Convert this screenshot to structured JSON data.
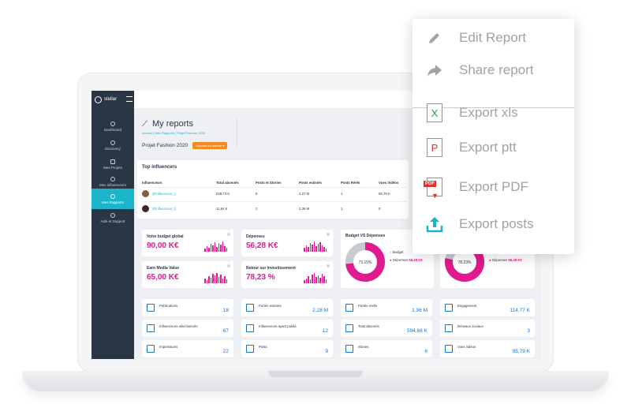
{
  "app": {
    "brand": "stellar"
  },
  "sidebar": {
    "items": [
      {
        "label": "Dashboard"
      },
      {
        "label": "Discovery"
      },
      {
        "label": "Mes Projets"
      },
      {
        "label": "Mes influenceurs"
      },
      {
        "label": "Mes Rapports"
      },
      {
        "label": "Aide et Support"
      }
    ]
  },
  "page": {
    "title": "My reports",
    "breadcrumb": "Accueil  |  Mes Rapports  |  Projet Fashion 2020",
    "project_name": "Projet Fashion 2020",
    "project_badge": "Rapport en attente"
  },
  "top_influencers": {
    "title": "Top influencers",
    "columns": [
      "Influenceurs",
      "Total abonnés",
      "Posts et Stories",
      "Posts estimés",
      "Posts Réels",
      "Vues Vidéos"
    ],
    "rows": [
      {
        "name": "@influenceur_1",
        "total": "528,73 K",
        "posts_stories": "8",
        "estimated": "2,27 M",
        "real": "1",
        "views": "95,79 K"
      },
      {
        "name": "@influenceur_2",
        "total": "11,94 K",
        "posts_stories": "2",
        "estimated": "2,35 M",
        "real": "1",
        "views": "0"
      }
    ]
  },
  "kpis": [
    {
      "label": "Votre budget global",
      "value": "90,00 K€"
    },
    {
      "label": "Dépenses",
      "value": "56,28 K€"
    },
    {
      "label": "Earn Media Value",
      "value": "65,00 K€"
    },
    {
      "label": "Retour sur investissement",
      "value": "78,23 %"
    }
  ],
  "budget_chart": {
    "title": "Budget VS Dépenses",
    "percent_1": "73.15%",
    "percent_2": "78.23%",
    "legend_budget": "Budget",
    "legend_depenses_1": "Dépenses",
    "legend_depenses_1_value": "56,28 K€",
    "legend_depenses_2": "Dépenses",
    "legend_depenses_2_value": "56,28 K€",
    "pink": "#e01a8f",
    "grey": "#c8ccd2"
  },
  "stats": [
    {
      "label": "Publications",
      "value": "18"
    },
    {
      "label": "Portée estimée",
      "value": "2,28 M"
    },
    {
      "label": "Portée réelle",
      "value": "1,96 M"
    },
    {
      "label": "Engagement",
      "value": "114,77 K"
    },
    {
      "label": "Influenceurs sélectionnés",
      "value": "67"
    },
    {
      "label": "Influenceurs ayant publié",
      "value": "12"
    },
    {
      "label": "Total abonnés",
      "value": "594,66 K"
    },
    {
      "label": "Réseaux sociaux",
      "value": "3"
    },
    {
      "label": "Impressions",
      "value": "22"
    },
    {
      "label": "Posts",
      "value": "9"
    },
    {
      "label": "Stories",
      "value": "6"
    },
    {
      "label": "Vues vidéos",
      "value": "95,79 K"
    }
  ],
  "menu": {
    "items": [
      {
        "label": "Edit Report",
        "icon": "pencil-icon"
      },
      {
        "label": "Share report",
        "icon": "share-arrow-icon"
      },
      {
        "label": "Export xls",
        "icon": "xls-file-icon",
        "glyph": "X",
        "color": "#2e9e3e"
      },
      {
        "label": "Export ptt",
        "icon": "ppt-file-icon",
        "glyph": "P",
        "color": "#e0322c"
      },
      {
        "label": "Export PDF",
        "icon": "pdf-file-icon",
        "glyph": "PDF",
        "color": "#e0322c"
      },
      {
        "label": "Export posts",
        "icon": "upload-icon",
        "color": "#1bb4c8"
      }
    ]
  }
}
